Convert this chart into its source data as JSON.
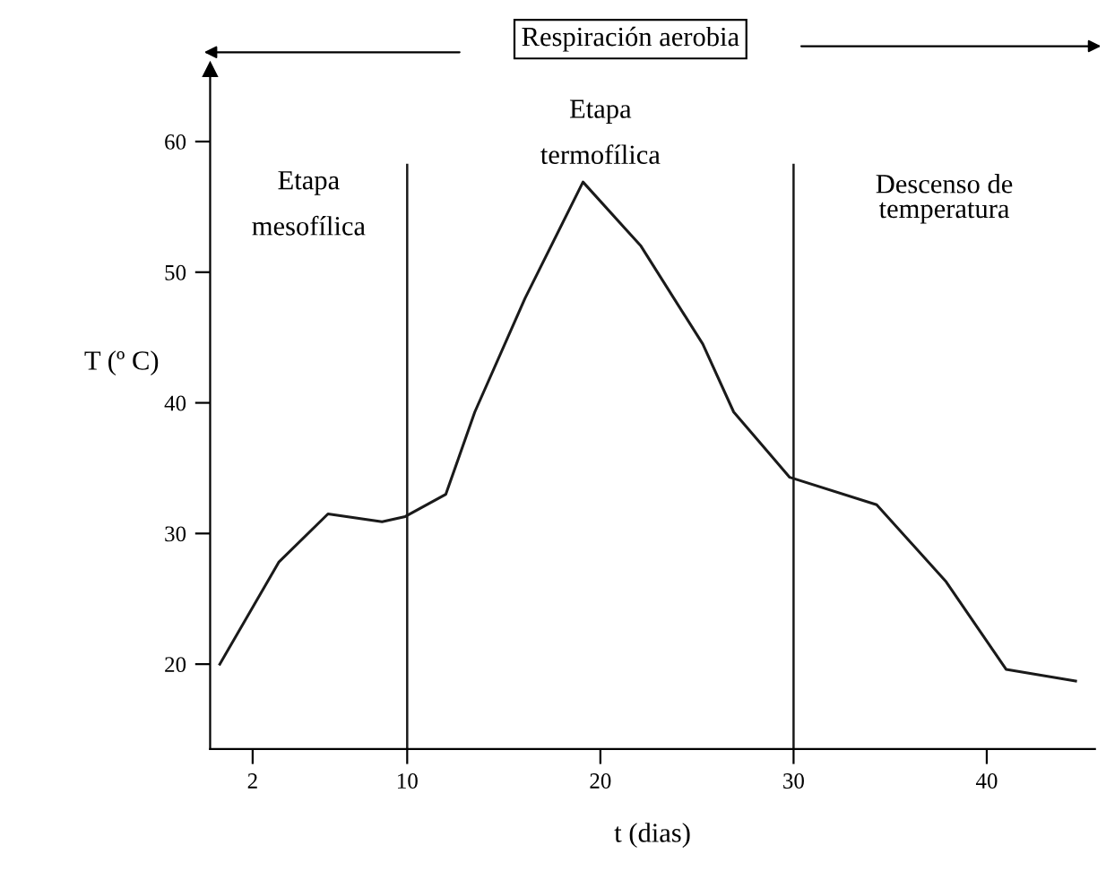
{
  "chart_data": {
    "type": "line",
    "xlabel": "t (dias)",
    "ylabel": "T (º C)",
    "x": [
      0.3,
      3.35,
      5.9,
      8.7,
      9.9,
      12.0,
      13.5,
      16.1,
      19.1,
      22.1,
      25.3,
      26.9,
      29.8,
      34.3,
      37.9,
      41.0,
      44.6
    ],
    "series": [
      {
        "color": "#1a1a1a",
        "values": [
          20,
          27.8,
          31.5,
          30.9,
          31.3,
          33,
          39.3,
          48,
          56.9,
          52,
          44.5,
          39.3,
          34.3,
          32.2,
          26.3,
          19.6,
          18.7
        ]
      }
    ],
    "xlim": [
      -0.2,
      45.6
    ],
    "ylim": [
      13.5,
      65.5
    ],
    "xticks": [
      2,
      10,
      20,
      30,
      40
    ],
    "yticks": [
      20,
      30,
      40,
      50,
      60
    ],
    "ref_lines": [
      {
        "axis": "x",
        "value": 10,
        "color": "#1a1a1a"
      },
      {
        "axis": "x",
        "value": 30,
        "color": "#1a1a1a"
      }
    ],
    "annotations": [
      "Respiración aerobia",
      "Etapa\n\nmesofílica",
      "Etapa\n\ntermofílica",
      "Descenso de\ntemperatura"
    ],
    "grid": false,
    "legend": false,
    "marker": "none",
    "line_style": "solid"
  }
}
